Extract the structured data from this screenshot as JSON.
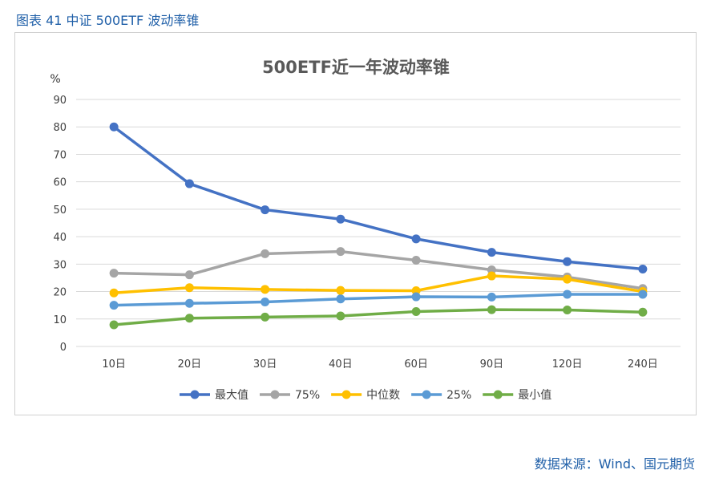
{
  "caption": "图表 41  中证 500ETF 波动率锥",
  "source": "数据来源：Wind、国元期货",
  "chart_data": {
    "type": "line",
    "title": "500ETF近一年波动率锥",
    "ylabel": "%",
    "xlabel": "",
    "ylim": [
      0,
      90
    ],
    "yticks": [
      "0",
      "10",
      "20",
      "30",
      "40",
      "50",
      "60",
      "70",
      "80",
      "90"
    ],
    "categories": [
      "10日",
      "20日",
      "30日",
      "40日",
      "60日",
      "90日",
      "120日",
      "240日"
    ],
    "grid": true,
    "legend_position": "bottom",
    "series": [
      {
        "name": "最大值",
        "color": "#4472c4",
        "values": [
          80,
          59.3,
          49.8,
          46.4,
          39.2,
          34.3,
          30.9,
          28.2
        ]
      },
      {
        "name": "75%",
        "color": "#a5a5a5",
        "values": [
          26.7,
          26.1,
          33.8,
          34.6,
          31.4,
          27.9,
          25.3,
          21.1
        ]
      },
      {
        "name": "中位数",
        "color": "#ffc000",
        "values": [
          19.5,
          21.4,
          20.8,
          20.4,
          20.3,
          25.7,
          24.5,
          20.0
        ]
      },
      {
        "name": "25%",
        "color": "#5b9bd5",
        "values": [
          15.0,
          15.7,
          16.2,
          17.3,
          18.1,
          18.0,
          19.0,
          19.0
        ]
      },
      {
        "name": "最小值",
        "color": "#70ad47",
        "values": [
          7.9,
          10.3,
          10.7,
          11.1,
          12.7,
          13.4,
          13.3,
          12.5
        ]
      }
    ]
  }
}
